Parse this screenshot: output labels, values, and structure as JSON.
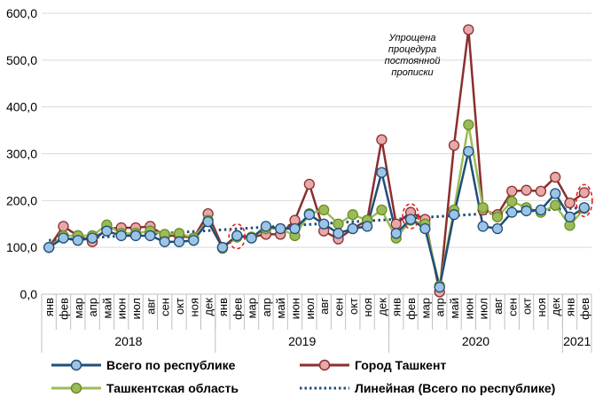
{
  "chart_data": {
    "type": "line",
    "title": "",
    "xlabel": "",
    "ylabel": "",
    "ylim": [
      0,
      600
    ],
    "y_ticks": [
      "0,0",
      "100,0",
      "200,0",
      "300,0",
      "400,0",
      "500,0",
      "600,0"
    ],
    "y_tick_values": [
      0,
      100,
      200,
      300,
      400,
      500,
      600
    ],
    "grid": true,
    "categories": [
      "янв",
      "фев",
      "мар",
      "апр",
      "май",
      "июн",
      "июл",
      "авг",
      "сен",
      "окт",
      "ноя",
      "дек",
      "янв",
      "фев",
      "мар",
      "апр",
      "май",
      "июн",
      "июл",
      "авг",
      "сен",
      "окт",
      "ноя",
      "дек",
      "янв",
      "фев",
      "мар",
      "апр",
      "май",
      "июн",
      "июл",
      "авг",
      "сен",
      "окт",
      "ноя",
      "дек",
      "янв",
      "фев"
    ],
    "years": [
      {
        "label": "2018",
        "start": 0,
        "end": 11
      },
      {
        "label": "2019",
        "start": 12,
        "end": 23
      },
      {
        "label": "2020",
        "start": 24,
        "end": 35
      },
      {
        "label": "2021",
        "start": 36,
        "end": 37
      }
    ],
    "series": [
      {
        "name": "Всего по республике",
        "color": "#1f4e79",
        "fill": "#9dc3e6",
        "values": [
          100,
          120,
          115,
          120,
          135,
          125,
          125,
          125,
          112,
          112,
          115,
          155,
          100,
          125,
          120,
          145,
          140,
          140,
          170,
          150,
          130,
          140,
          145,
          260,
          130,
          160,
          140,
          15,
          170,
          305,
          145,
          140,
          175,
          178,
          180,
          215,
          165,
          185
        ]
      },
      {
        "name": "Город Ташкент",
        "color": "#8b2e2e",
        "fill": "#e6a8a8",
        "values": [
          100,
          145,
          125,
          112,
          140,
          142,
          142,
          145,
          125,
          125,
          120,
          172,
          100,
          125,
          122,
          128,
          128,
          158,
          235,
          135,
          118,
          140,
          158,
          330,
          150,
          175,
          160,
          5,
          318,
          565,
          180,
          170,
          220,
          222,
          220,
          250,
          195,
          217
        ]
      },
      {
        "name": "Ташкентская область",
        "color": "#9bbb59",
        "fill": "#9bbb59",
        "values": [
          100,
          125,
          125,
          125,
          148,
          130,
          130,
          135,
          128,
          130,
          120,
          158,
          98,
          122,
          122,
          140,
          140,
          125,
          172,
          180,
          150,
          170,
          158,
          180,
          120,
          158,
          150,
          18,
          180,
          362,
          185,
          165,
          198,
          185,
          175,
          190,
          147,
          183
        ]
      }
    ],
    "trendline": {
      "name": "Линейная (Всего по республике)",
      "color": "#1f4e79",
      "start": 115,
      "end": 185
    },
    "annotation": [
      "Упрощена",
      "процедура",
      "постоянной",
      "прописки"
    ],
    "highlighted_points": [
      13,
      25,
      37
    ]
  },
  "legend": {
    "item1": "Всего по республике",
    "item2": "Город Ташкент",
    "item3": "Ташкентская область",
    "item4": "Линейная (Всего по республике)"
  }
}
